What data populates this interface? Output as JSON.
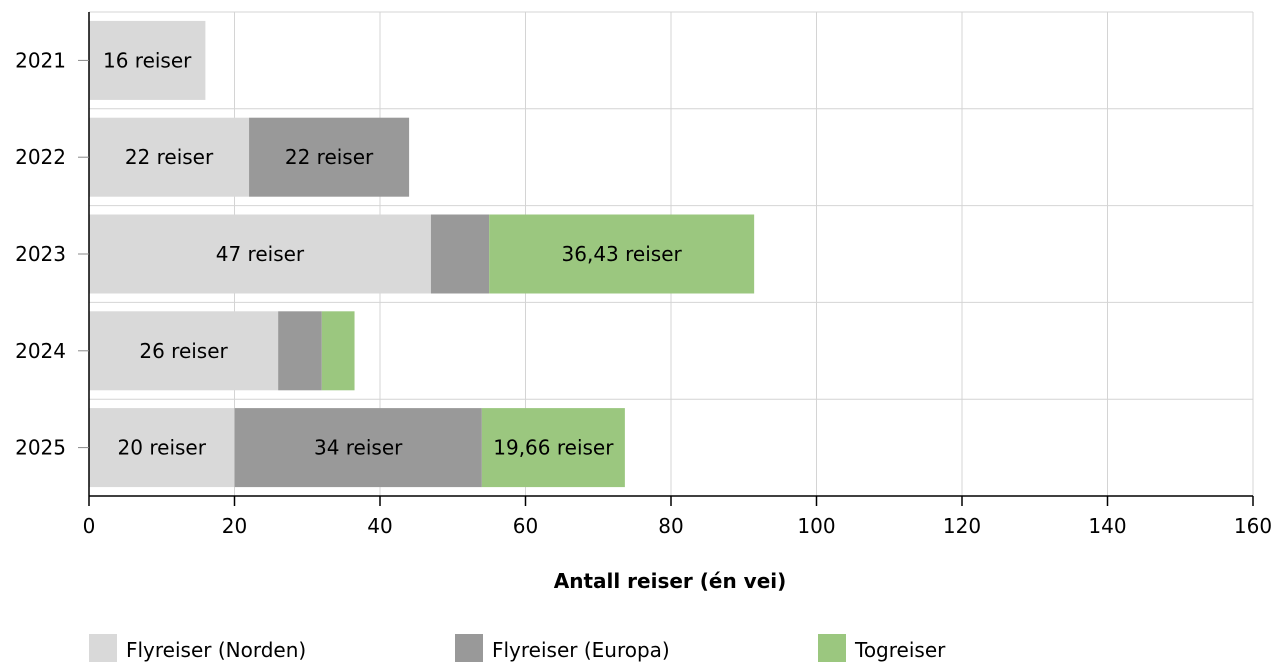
{
  "chart_data": {
    "type": "bar",
    "orientation": "horizontal",
    "stacked": true,
    "categories": [
      "2021",
      "2022",
      "2023",
      "2024",
      "2025"
    ],
    "series": [
      {
        "name": "Flyreiser (Norden)",
        "color": "#d9d9d9",
        "values": [
          16,
          22,
          47,
          26,
          20
        ],
        "labels": [
          "16 reiser",
          "22 reiser",
          "47 reiser",
          "26 reiser",
          "20 reiser"
        ]
      },
      {
        "name": "Flyreiser (Europa)",
        "color": "#999999",
        "values": [
          0,
          22,
          8,
          6,
          34
        ],
        "labels": [
          "",
          "22 reiser",
          "",
          "",
          "34 reiser"
        ]
      },
      {
        "name": "Togreiser",
        "color": "#9bc77f",
        "values": [
          0,
          0,
          36.43,
          4.5,
          19.66
        ],
        "labels": [
          "",
          "",
          "36,43 reiser",
          "",
          "19,66 reiser"
        ]
      }
    ],
    "xlabel": "Antall reiser (én vei)",
    "xlim": [
      0,
      160
    ],
    "xticks": [
      "0",
      "20",
      "40",
      "60",
      "80",
      "100",
      "120",
      "140",
      "160"
    ],
    "grid": true,
    "legend_position": "bottom"
  }
}
